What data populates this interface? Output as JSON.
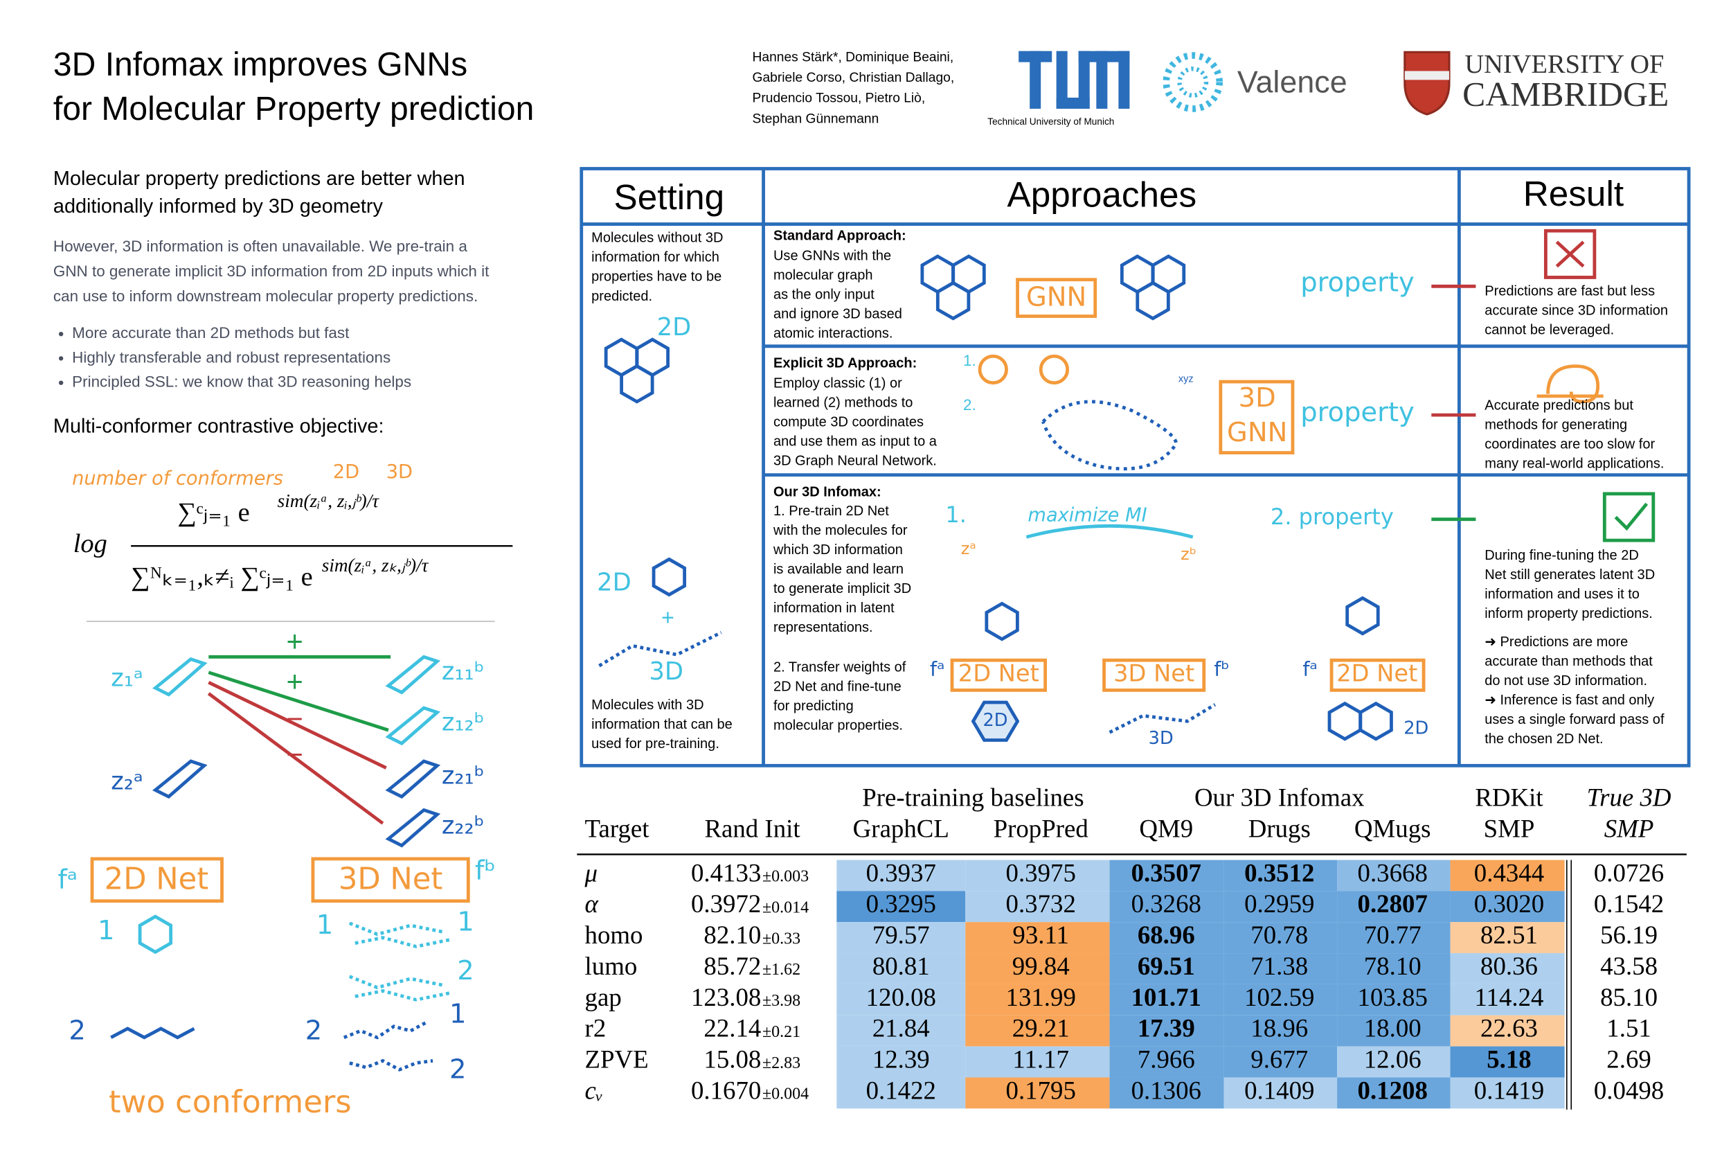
{
  "header": {
    "title": [
      "3D Infomax improves GNNs",
      "for Molecular Property prediction"
    ],
    "authors": [
      "Hannes Stärk*, Dominique Beaini,",
      "Gabriele Corso, Christian Dallago,",
      "Prudencio Tossou, Pietro Liò,",
      "Stephan Günnemann"
    ],
    "logos": {
      "tum": "Technical University of Munich",
      "valence": "Valence",
      "cambridge": [
        "UNIVERSITY OF",
        "CAMBRIDGE"
      ]
    }
  },
  "left": {
    "headline": [
      "Molecular property predictions are better when",
      "additionally informed by 3D geometry"
    ],
    "intro": [
      "However, 3D information is often unavailable. We pre-train a",
      "GNN to generate implicit 3D information from 2D inputs which it",
      "can use to inform downstream molecular property predictions."
    ],
    "bullets": [
      "More accurate than 2D methods but fast",
      "Highly transferable and robust representations",
      "Principled SSL: we know that 3D reasoning helps"
    ],
    "objective_title": "Multi-conformer contrastive objective:",
    "formula": {
      "annotation": "number of conformers",
      "ann_2d": "2D",
      "ann_3d": "3D",
      "log": "log",
      "numerator": "∑ᶜⱼ₌₁ e",
      "numerator_exp": "sim(zᵢᵃ, zᵢ,ⱼᵇ)/τ",
      "denominator": "∑ᴺₖ₌₁,ₖ≠ᵢ ∑ᶜⱼ₌₁ e",
      "denominator_exp": "sim(zᵢᵃ, zₖ,ⱼᵇ)/τ"
    },
    "diagram": {
      "z_labels": [
        "z₁ᵃ",
        "z₁₁ᵇ",
        "z₁₂ᵇ",
        "z₂ᵃ",
        "z₂₁ᵇ",
        "z₂₂ᵇ"
      ],
      "plus": "+",
      "minus": "−",
      "net_2d": "2D Net",
      "net_3d": "3D Net",
      "f_a": "fᵃ",
      "f_b": "fᵇ",
      "one": "1",
      "two": "2",
      "two_conformers": "two conformers"
    }
  },
  "center": {
    "headers": [
      "Setting",
      "Approaches",
      "Result"
    ],
    "setting": {
      "top": [
        "Molecules without 3D",
        "information for which",
        "properties have to be",
        "predicted."
      ],
      "label_2d": "2D",
      "label_3d": "3D",
      "plus": "+",
      "bottom": [
        "Molecules with 3D",
        "information that can be",
        "used for pre-training."
      ]
    },
    "standard": {
      "title": "Standard Approach:",
      "lines": [
        "Use GNNs with the",
        "molecular graph",
        "as the only input",
        "and ignore 3D based",
        "atomic interactions."
      ],
      "gnn": "GNN",
      "property": "property"
    },
    "explicit": {
      "title": "Explicit 3D Approach:",
      "lines": [
        "Employ classic (1) or",
        "learned (2) methods to",
        "compute 3D coordinates",
        "and use them as input to a",
        "3D Graph Neural Network."
      ],
      "step1": "1.",
      "step2": "2.",
      "gnn": [
        "3D",
        "GNN"
      ],
      "property": "property",
      "xyz": "xyz"
    },
    "infomax": {
      "title": "Our 3D Infomax:",
      "lines": [
        "1. Pre-train 2D Net",
        "with the molecules for",
        "which 3D information",
        "is available and learn",
        "to generate implicit 3D",
        "information in latent",
        "representations."
      ],
      "transfer": [
        "2. Transfer weights of",
        "2D Net and fine-tune",
        "for predicting",
        "molecular properties."
      ],
      "step1": "1.",
      "maximize": "maximize MI",
      "step2": "2. property",
      "za": "zᵃ",
      "zb": "zᵇ",
      "net_2d": "2D Net",
      "net_3d": "3D Net",
      "fa": "fᵃ",
      "fb": "fᵇ",
      "label_2d": "2D",
      "label_3d": "3D"
    },
    "results": [
      [
        "Predictions are fast but less",
        "accurate since 3D information",
        "cannot be leveraged."
      ],
      [
        "Accurate predictions but",
        "methods for generating",
        "coordinates are too slow for",
        "many real-world applications."
      ],
      [
        "During fine-tuning the 2D",
        "Net still generates latent 3D",
        "information and uses it to",
        "inform property predictions."
      ]
    ],
    "notes": [
      "➜ Predictions are more",
      "accurate than methods that",
      "do not use 3D information.",
      "➜ Inference is fast and only",
      "uses a single forward pass of",
      "the chosen 2D Net."
    ]
  },
  "table": {
    "groups": [
      "Pre-training baselines",
      "Our 3D Infomax",
      "RDKit",
      "True 3D"
    ],
    "columns": [
      "Target",
      "Rand Init",
      "GraphCL",
      "PropPred",
      "QM9",
      "Drugs",
      "QMugs",
      "SMP",
      "SMP"
    ],
    "rows": [
      {
        "target": "μ",
        "cells": [
          {
            "text": "0.4133",
            "std": "±0.003"
          },
          {
            "text": "0.3937",
            "fill": "#aed0ee"
          },
          {
            "text": "0.3975",
            "fill": "#aed0ee"
          },
          {
            "text": "0.3507",
            "fill": "#6aa6dc",
            "bold": true
          },
          {
            "text": "0.3512",
            "fill": "#6aa6dc",
            "bold": true
          },
          {
            "text": "0.3668",
            "fill": "#8cbbe6"
          },
          {
            "text": "0.4344",
            "fill": "#f9a65a"
          },
          {
            "text": "0.0726"
          }
        ]
      },
      {
        "target": "α",
        "cells": [
          {
            "text": "0.3972",
            "std": "±0.014"
          },
          {
            "text": "0.3295",
            "fill": "#5597d4"
          },
          {
            "text": "0.3732",
            "fill": "#aed0ee"
          },
          {
            "text": "0.3268",
            "fill": "#6aa6dc"
          },
          {
            "text": "0.2959",
            "fill": "#6aa6dc"
          },
          {
            "text": "0.2807",
            "fill": "#6aa6dc",
            "bold": true
          },
          {
            "text": "0.3020",
            "fill": "#6aa6dc"
          },
          {
            "text": "0.1542"
          }
        ]
      },
      {
        "target": "homo",
        "cells": [
          {
            "text": "82.10",
            "std": "±0.33"
          },
          {
            "text": "79.57",
            "fill": "#aed0ee"
          },
          {
            "text": "93.11",
            "fill": "#f9a65a"
          },
          {
            "text": "68.96",
            "fill": "#6aa6dc",
            "bold": true
          },
          {
            "text": "70.78",
            "fill": "#6aa6dc"
          },
          {
            "text": "70.77",
            "fill": "#6aa6dc"
          },
          {
            "text": "82.51",
            "fill": "#fbcb9c"
          },
          {
            "text": "56.19"
          }
        ]
      },
      {
        "target": "lumo",
        "cells": [
          {
            "text": "85.72",
            "std": "±1.62"
          },
          {
            "text": "80.81",
            "fill": "#aed0ee"
          },
          {
            "text": "99.84",
            "fill": "#f9a65a"
          },
          {
            "text": "69.51",
            "fill": "#6aa6dc",
            "bold": true
          },
          {
            "text": "71.38",
            "fill": "#6aa6dc"
          },
          {
            "text": "78.10",
            "fill": "#6aa6dc"
          },
          {
            "text": "80.36",
            "fill": "#aed0ee"
          },
          {
            "text": "43.58"
          }
        ]
      },
      {
        "target": "gap",
        "cells": [
          {
            "text": "123.08",
            "std": "±3.98"
          },
          {
            "text": "120.08",
            "fill": "#aed0ee"
          },
          {
            "text": "131.99",
            "fill": "#f9a65a"
          },
          {
            "text": "101.71",
            "fill": "#6aa6dc",
            "bold": true
          },
          {
            "text": "102.59",
            "fill": "#6aa6dc"
          },
          {
            "text": "103.85",
            "fill": "#6aa6dc"
          },
          {
            "text": "114.24",
            "fill": "#aed0ee"
          },
          {
            "text": "85.10"
          }
        ]
      },
      {
        "target": "r2",
        "cells": [
          {
            "text": "22.14",
            "std": "±0.21"
          },
          {
            "text": "21.84",
            "fill": "#aed0ee"
          },
          {
            "text": "29.21",
            "fill": "#f9a65a"
          },
          {
            "text": "17.39",
            "fill": "#6aa6dc",
            "bold": true
          },
          {
            "text": "18.96",
            "fill": "#6aa6dc"
          },
          {
            "text": "18.00",
            "fill": "#6aa6dc"
          },
          {
            "text": "22.63",
            "fill": "#fbcb9c"
          },
          {
            "text": "1.51"
          }
        ]
      },
      {
        "target": "ZPVE",
        "cells": [
          {
            "text": "15.08",
            "std": "±2.83"
          },
          {
            "text": "12.39",
            "fill": "#aed0ee"
          },
          {
            "text": "11.17",
            "fill": "#aed0ee"
          },
          {
            "text": "7.966",
            "fill": "#6aa6dc"
          },
          {
            "text": "9.677",
            "fill": "#6aa6dc"
          },
          {
            "text": "12.06",
            "fill": "#aed0ee"
          },
          {
            "text": "5.18",
            "fill": "#5597d4",
            "bold": true
          },
          {
            "text": "2.69"
          }
        ]
      },
      {
        "target": "cᵥ",
        "cells": [
          {
            "text": "0.1670",
            "std": "±0.004"
          },
          {
            "text": "0.1422",
            "fill": "#aed0ee"
          },
          {
            "text": "0.1795",
            "fill": "#f9a65a"
          },
          {
            "text": "0.1306",
            "fill": "#6aa6dc"
          },
          {
            "text": "0.1409",
            "fill": "#aed0ee"
          },
          {
            "text": "0.1208",
            "fill": "#6aa6dc",
            "bold": true
          },
          {
            "text": "0.1419",
            "fill": "#aed0ee"
          },
          {
            "text": "0.0498"
          }
        ]
      }
    ]
  }
}
